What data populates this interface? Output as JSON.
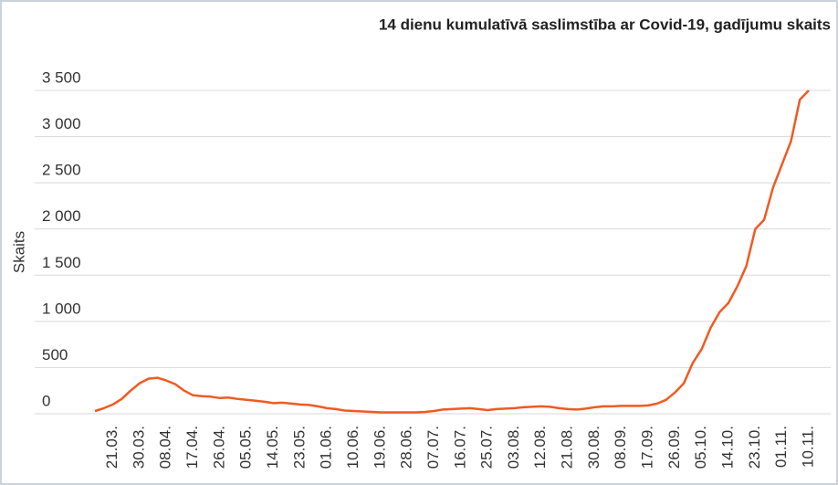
{
  "chart_data": {
    "type": "line",
    "title": "14 dienu kumulatīvā saslimstība ar Covid-19, gadījumu skaits",
    "y_label": "Skaits",
    "categories": [
      null,
      null,
      "21.03.",
      null,
      null,
      "30.03.",
      null,
      null,
      "08.04.",
      null,
      null,
      "17.04.",
      null,
      null,
      "26.04.",
      null,
      null,
      "05.05.",
      null,
      null,
      "14.05.",
      null,
      null,
      "23.05.",
      null,
      null,
      "01.06.",
      null,
      null,
      "10.06.",
      null,
      null,
      "19.06.",
      null,
      null,
      "28.06.",
      null,
      null,
      "07.07.",
      null,
      null,
      "16.07.",
      null,
      null,
      "25.07.",
      null,
      null,
      "03.08.",
      null,
      null,
      "12.08.",
      null,
      null,
      "21.08.",
      null,
      null,
      "30.08.",
      null,
      null,
      "08.09.",
      null,
      null,
      "17.09.",
      null,
      null,
      "26.09.",
      null,
      null,
      "05.10.",
      null,
      null,
      "14.10.",
      null,
      null,
      "23.10.",
      null,
      null,
      "01.11.",
      null,
      null,
      "10.11."
    ],
    "series": [
      {
        "color": "#f05a22",
        "values": [
          30,
          60,
          100,
          160,
          250,
          330,
          380,
          390,
          360,
          320,
          250,
          200,
          190,
          185,
          170,
          175,
          160,
          150,
          140,
          130,
          115,
          120,
          110,
          100,
          95,
          80,
          60,
          50,
          35,
          30,
          25,
          20,
          15,
          15,
          15,
          15,
          15,
          20,
          30,
          45,
          50,
          55,
          60,
          50,
          40,
          50,
          55,
          60,
          70,
          75,
          80,
          75,
          60,
          50,
          45,
          55,
          70,
          80,
          80,
          85,
          85,
          85,
          90,
          110,
          150,
          230,
          330,
          550,
          700,
          930,
          1100,
          1200,
          1380,
          1600,
          2000,
          2100,
          2450,
          2700,
          2950,
          3400,
          3500
        ]
      }
    ],
    "ylim": [
      0,
      3500
    ],
    "yticks": [
      0,
      500,
      {
        "value": 1000,
        "label": "1 000"
      },
      {
        "value": 1500,
        "label": "1 500"
      },
      {
        "value": 2000,
        "label": "2 000"
      },
      {
        "value": 2500,
        "label": "2 500"
      },
      {
        "value": 3000,
        "label": "3 000"
      },
      {
        "value": 3500,
        "label": "3 500"
      }
    ],
    "grid": true
  }
}
